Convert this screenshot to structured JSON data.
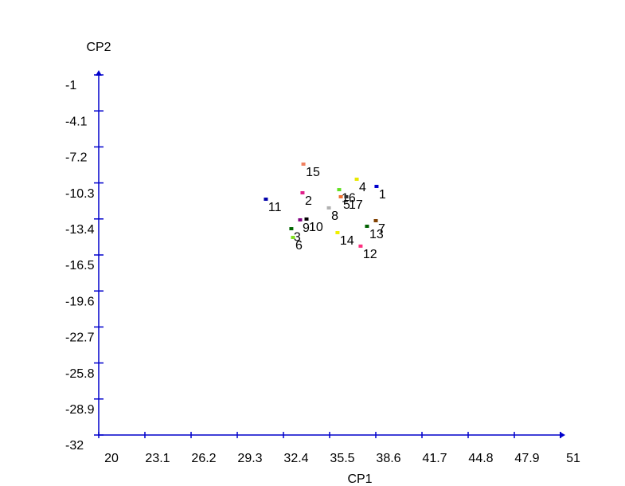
{
  "chart_data": {
    "type": "scatter",
    "x_label": "CP1",
    "y_label": "CP2",
    "xlim": [
      20,
      51
    ],
    "xticks": [
      20,
      23.1,
      26.2,
      29.3,
      32.4,
      35.5,
      38.6,
      41.7,
      44.8,
      47.9,
      51
    ],
    "ylim": [
      -32,
      -1
    ],
    "yticks": [
      -32,
      -28.9,
      -25.8,
      -22.7,
      -19.6,
      -16.5,
      -13.4,
      -10.3,
      -7.2,
      -4.1,
      -1
    ],
    "axis_color": "#0000cc",
    "points": [
      {
        "label": "1",
        "x": 38.65,
        "y": -10.6,
        "color": "#0000cc"
      },
      {
        "label": "2",
        "x": 33.68,
        "y": -11.15,
        "color": "#e0208a"
      },
      {
        "label": "3",
        "x": 32.93,
        "y": -14.24,
        "color": "#006600"
      },
      {
        "label": "4",
        "x": 37.32,
        "y": -9.98,
        "color": "#e8e800"
      },
      {
        "label": "5",
        "x": 36.25,
        "y": -11.49,
        "color": "#f07030"
      },
      {
        "label": "6",
        "x": 33.04,
        "y": -14.99,
        "color": "#80e020"
      },
      {
        "label": "7",
        "x": 38.6,
        "y": -13.55,
        "color": "#804000"
      },
      {
        "label": "8",
        "x": 35.45,
        "y": -12.45,
        "color": "#b0b0b0"
      },
      {
        "label": "9",
        "x": 33.52,
        "y": -13.48,
        "color": "#800080"
      },
      {
        "label": "10",
        "x": 33.95,
        "y": -13.41,
        "color": "#000000"
      },
      {
        "label": "11",
        "x": 31.22,
        "y": -11.7,
        "color": "#0000aa"
      },
      {
        "label": "12",
        "x": 37.58,
        "y": -15.74,
        "color": "#ff3080"
      },
      {
        "label": "13",
        "x": 38.01,
        "y": -14.03,
        "color": "#006000"
      },
      {
        "label": "14",
        "x": 36.03,
        "y": -14.58,
        "color": "#f0f000"
      },
      {
        "label": "15",
        "x": 33.74,
        "y": -8.68,
        "color": "#f08060"
      },
      {
        "label": "16",
        "x": 36.14,
        "y": -10.88,
        "color": "#60e020"
      },
      {
        "label": "17",
        "x": 36.62,
        "y": -11.49,
        "color": "#303030"
      }
    ]
  }
}
